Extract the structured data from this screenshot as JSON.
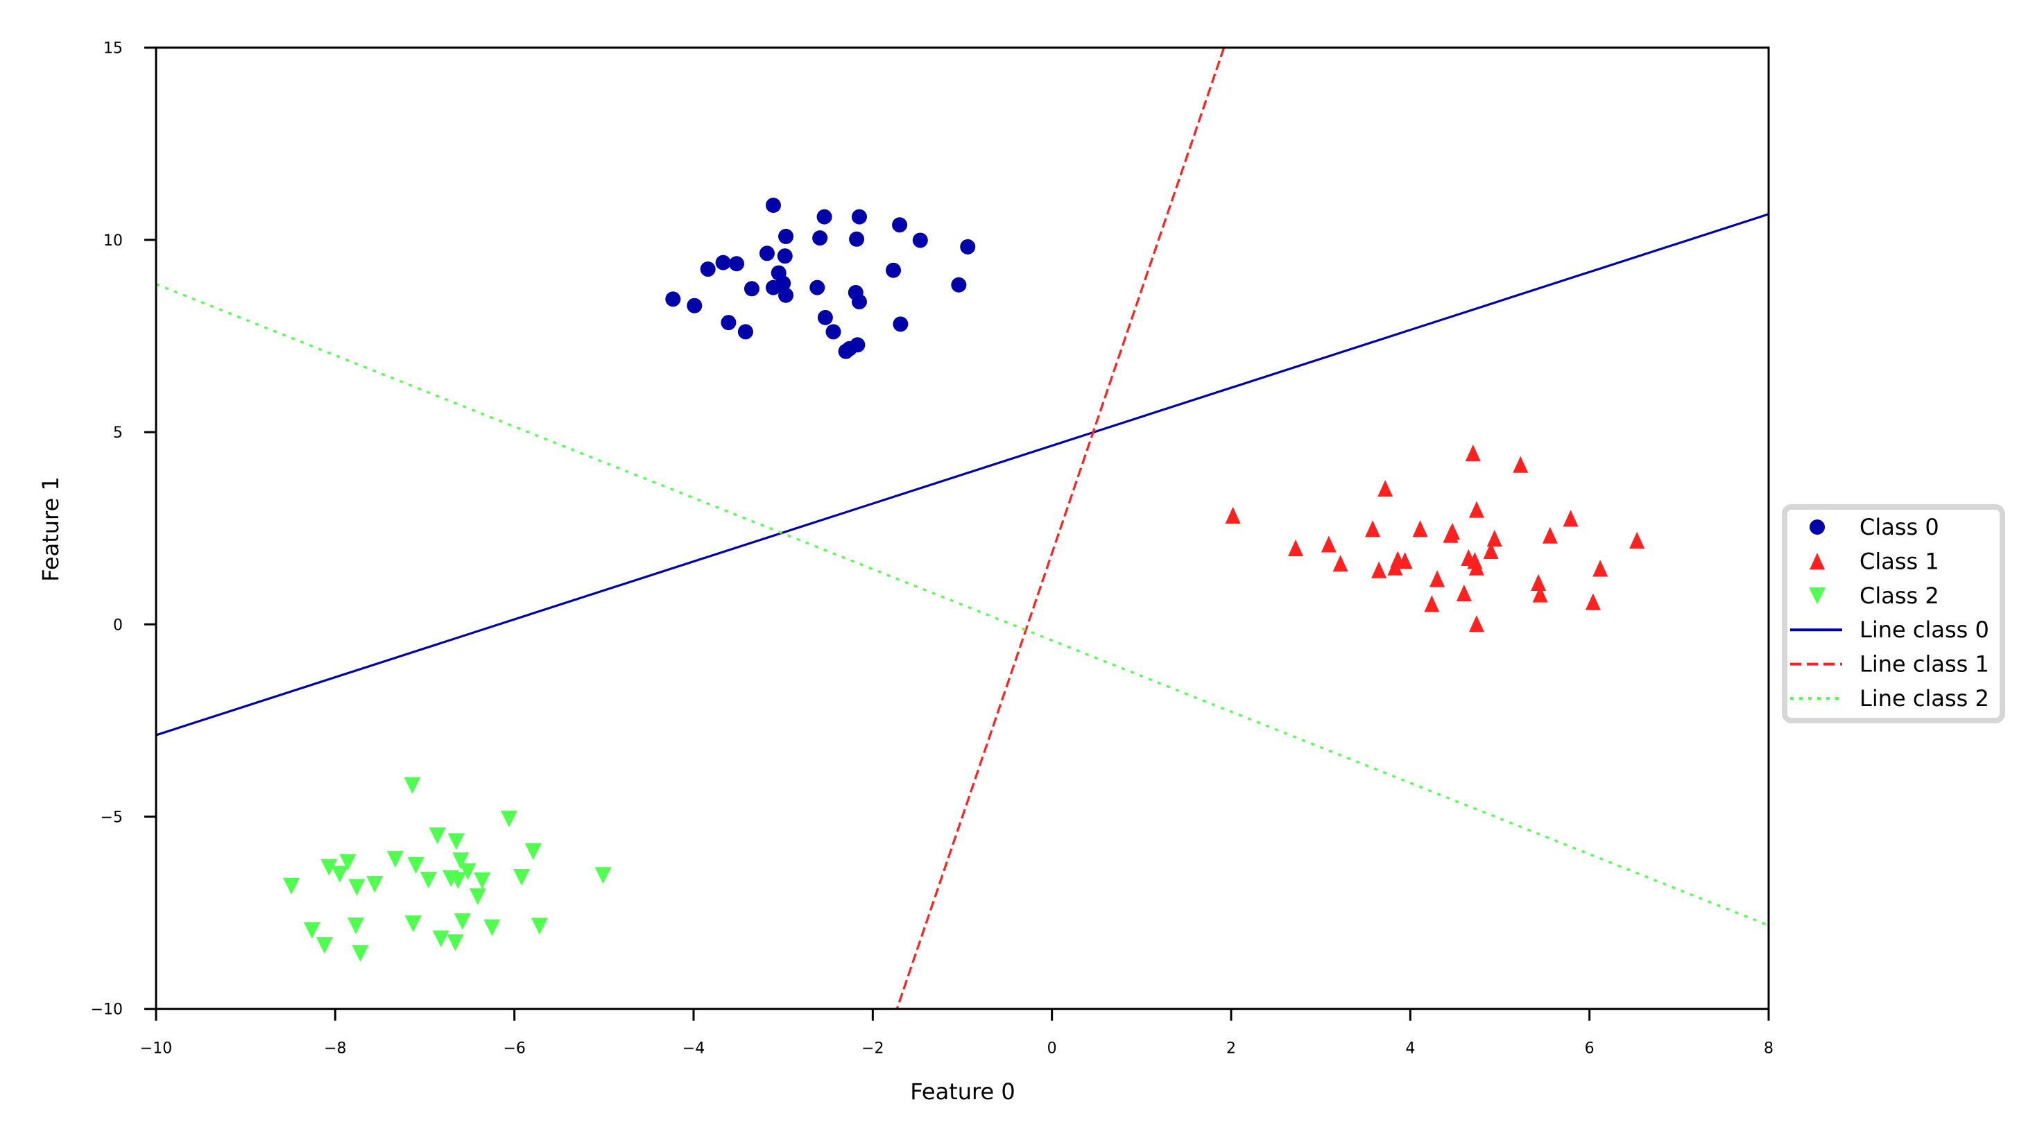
{
  "chart_data": {
    "type": "scatter",
    "title": "",
    "xlabel": "Feature 0",
    "ylabel": "Feature 1",
    "xlim": [
      -10,
      8
    ],
    "ylim": [
      -10,
      15
    ],
    "xticks": [
      -10,
      -8,
      -6,
      -4,
      -2,
      0,
      2,
      4,
      6,
      8
    ],
    "xtick_labels": [
      "−10",
      "−8",
      "−6",
      "−4",
      "−2",
      "0",
      "2",
      "4",
      "6",
      "8"
    ],
    "yticks": [
      -10,
      -5,
      0,
      5,
      10,
      15
    ],
    "ytick_labels": [
      "−10",
      "−5",
      "0",
      "5",
      "10",
      "15"
    ],
    "grid": false,
    "legend_position": "outside right, vertically centered",
    "series": [
      {
        "name": "Class 0",
        "kind": "scatter",
        "marker": "circle",
        "color": "#0000aa",
        "points": [
          [
            -3.11,
            10.9
          ],
          [
            -2.54,
            10.6
          ],
          [
            -2.15,
            10.6
          ],
          [
            -1.7,
            10.39
          ],
          [
            -2.97,
            10.09
          ],
          [
            -2.59,
            10.05
          ],
          [
            -2.18,
            10.02
          ],
          [
            -1.47,
            9.99
          ],
          [
            -0.94,
            9.82
          ],
          [
            -3.84,
            9.24
          ],
          [
            -3.67,
            9.41
          ],
          [
            -3.52,
            9.38
          ],
          [
            -3.18,
            9.65
          ],
          [
            -2.98,
            9.58
          ],
          [
            -3.05,
            9.14
          ],
          [
            -1.77,
            9.21
          ],
          [
            -1.04,
            8.83
          ],
          [
            -3.35,
            8.73
          ],
          [
            -3.11,
            8.76
          ],
          [
            -3.0,
            8.87
          ],
          [
            -2.97,
            8.56
          ],
          [
            -2.62,
            8.76
          ],
          [
            -2.19,
            8.63
          ],
          [
            -2.15,
            8.39
          ],
          [
            -4.23,
            8.46
          ],
          [
            -3.99,
            8.29
          ],
          [
            -3.61,
            7.85
          ],
          [
            -3.42,
            7.61
          ],
          [
            -2.53,
            7.98
          ],
          [
            -2.44,
            7.61
          ],
          [
            -1.69,
            7.81
          ],
          [
            -2.3,
            7.1
          ],
          [
            -2.26,
            7.17
          ],
          [
            -2.17,
            7.27
          ]
        ]
      },
      {
        "name": "Class 1",
        "kind": "scatter",
        "marker": "triangle-up",
        "color": "#ff2020",
        "points": [
          [
            2.02,
            2.8
          ],
          [
            2.72,
            1.95
          ],
          [
            3.09,
            2.05
          ],
          [
            3.22,
            1.55
          ],
          [
            3.72,
            3.5
          ],
          [
            3.58,
            2.45
          ],
          [
            3.65,
            1.38
          ],
          [
            3.83,
            1.45
          ],
          [
            3.86,
            1.65
          ],
          [
            3.94,
            1.62
          ],
          [
            4.11,
            2.45
          ],
          [
            4.3,
            1.15
          ],
          [
            4.24,
            0.5
          ],
          [
            4.45,
            2.3
          ],
          [
            4.47,
            2.38
          ],
          [
            4.6,
            0.78
          ],
          [
            4.65,
            1.7
          ],
          [
            4.7,
            4.42
          ],
          [
            4.74,
            2.95
          ],
          [
            4.72,
            1.62
          ],
          [
            4.74,
            1.45
          ],
          [
            4.74,
            -0.02
          ],
          [
            4.9,
            1.88
          ],
          [
            4.94,
            2.2
          ],
          [
            5.23,
            4.12
          ],
          [
            5.43,
            1.05
          ],
          [
            5.45,
            0.75
          ],
          [
            5.56,
            2.28
          ],
          [
            5.79,
            2.72
          ],
          [
            6.04,
            0.55
          ],
          [
            6.12,
            1.42
          ],
          [
            6.53,
            2.15
          ]
        ]
      },
      {
        "name": "Class 2",
        "kind": "scatter",
        "marker": "triangle-down",
        "color": "#50ff50",
        "points": [
          [
            -8.49,
            -6.77
          ],
          [
            -8.26,
            -7.92
          ],
          [
            -8.12,
            -8.31
          ],
          [
            -8.07,
            -6.28
          ],
          [
            -7.95,
            -6.46
          ],
          [
            -7.86,
            -6.15
          ],
          [
            -7.76,
            -6.8
          ],
          [
            -7.77,
            -7.8
          ],
          [
            -7.72,
            -8.52
          ],
          [
            -7.56,
            -6.72
          ],
          [
            -7.33,
            -6.07
          ],
          [
            -7.14,
            -4.15
          ],
          [
            -7.13,
            -7.75
          ],
          [
            -7.1,
            -6.23
          ],
          [
            -6.96,
            -6.61
          ],
          [
            -6.86,
            -5.46
          ],
          [
            -6.82,
            -8.14
          ],
          [
            -6.71,
            -6.57
          ],
          [
            -6.65,
            -5.61
          ],
          [
            -6.66,
            -8.24
          ],
          [
            -6.63,
            -6.62
          ],
          [
            -6.6,
            -6.11
          ],
          [
            -6.58,
            -7.69
          ],
          [
            -6.52,
            -6.39
          ],
          [
            -6.41,
            -7.04
          ],
          [
            -6.36,
            -6.63
          ],
          [
            -6.25,
            -7.85
          ],
          [
            -6.06,
            -5.02
          ],
          [
            -5.92,
            -6.54
          ],
          [
            -5.79,
            -5.87
          ],
          [
            -5.72,
            -7.81
          ],
          [
            -5.01,
            -6.49
          ]
        ]
      },
      {
        "name": "Line class 0",
        "kind": "line",
        "style": "solid",
        "color": "#0000aa",
        "points": [
          [
            -10,
            -2.88
          ],
          [
            8,
            10.67
          ]
        ]
      },
      {
        "name": "Line class 1",
        "kind": "line",
        "style": "dashed",
        "color": "#ff2020",
        "points": [
          [
            1.92,
            15
          ],
          [
            -1.73,
            -10
          ]
        ]
      },
      {
        "name": "Line class 2",
        "kind": "line",
        "style": "dotted",
        "color": "#50ff50",
        "points": [
          [
            -10,
            8.85
          ],
          [
            8,
            -7.83
          ]
        ]
      }
    ],
    "legend": [
      "Class 0",
      "Class 1",
      "Class 2",
      "Line class 0",
      "Line class 1",
      "Line class 2"
    ]
  },
  "axes": {
    "x_label": "Feature 0",
    "y_label": "Feature 1"
  },
  "legend": {
    "items": [
      {
        "label": "Class 0",
        "icon": "circle-marker",
        "color": "#0000aa"
      },
      {
        "label": "Class 1",
        "icon": "triangle-up-marker",
        "color": "#ff2020"
      },
      {
        "label": "Class 2",
        "icon": "triangle-down-marker",
        "color": "#50ff50"
      },
      {
        "label": "Line class 0",
        "icon": "solid-line",
        "color": "#0000aa"
      },
      {
        "label": "Line class 1",
        "icon": "dashed-line",
        "color": "#ff2020"
      },
      {
        "label": "Line class 2",
        "icon": "dotted-line",
        "color": "#50ff50"
      }
    ]
  }
}
